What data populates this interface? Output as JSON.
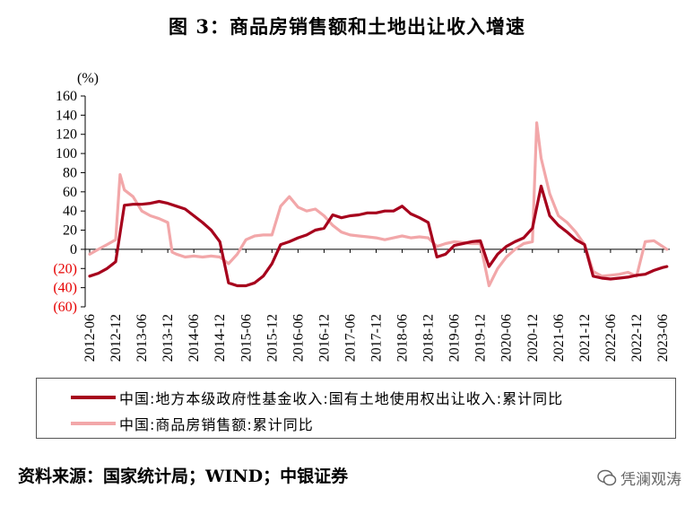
{
  "title": "图 3：商品房销售额和土地出让收入增速",
  "unit_label": "(%)",
  "legend": [
    {
      "label": "中国:地方本级政府性基金收入:国有土地使用权出让收入:累计同比",
      "color": "#a6001c"
    },
    {
      "label": "中国:商品房销售额:累计同比",
      "color": "#f2a7a9"
    }
  ],
  "source": "资料来源：国家统计局；WIND；中银证券",
  "watermark": "凭澜观涛",
  "chart_data": {
    "type": "line",
    "ylim": [
      -60,
      160
    ],
    "yticks": [
      160,
      140,
      120,
      100,
      80,
      60,
      40,
      20,
      0,
      -20,
      -40,
      -60
    ],
    "ytick_labels": [
      "160",
      "140",
      "120",
      "100",
      "80",
      "60",
      "40",
      "20",
      "0",
      "(20)",
      "(40)",
      "(60)"
    ],
    "xtick_labels": [
      "2012-06",
      "2012-12",
      "2013-06",
      "2013-12",
      "2014-06",
      "2014-12",
      "2015-06",
      "2015-12",
      "2016-06",
      "2016-12",
      "2017-06",
      "2017-12",
      "2018-06",
      "2018-12",
      "2019-06",
      "2019-12",
      "2020-06",
      "2020-12",
      "2021-06",
      "2021-12",
      "2022-06",
      "2022-12",
      "2023-06"
    ],
    "series": [
      {
        "name": "中国:地方本级政府性基金收入:国有土地使用权出让收入:累计同比",
        "color": "#a6001c",
        "x": [
          "2012-06",
          "2012-08",
          "2012-10",
          "2012-12",
          "2013-02",
          "2013-04",
          "2013-06",
          "2013-08",
          "2013-10",
          "2013-12",
          "2014-02",
          "2014-04",
          "2014-06",
          "2014-08",
          "2014-10",
          "2014-12",
          "2015-02",
          "2015-04",
          "2015-06",
          "2015-08",
          "2015-10",
          "2015-12",
          "2016-02",
          "2016-04",
          "2016-06",
          "2016-08",
          "2016-10",
          "2016-12",
          "2017-02",
          "2017-04",
          "2017-06",
          "2017-08",
          "2017-10",
          "2017-12",
          "2018-02",
          "2018-04",
          "2018-06",
          "2018-08",
          "2018-10",
          "2018-12",
          "2019-02",
          "2019-04",
          "2019-06",
          "2019-08",
          "2019-10",
          "2019-12",
          "2020-02",
          "2020-04",
          "2020-06",
          "2020-08",
          "2020-10",
          "2020-12",
          "2021-02",
          "2021-04",
          "2021-06",
          "2021-08",
          "2021-10",
          "2021-12",
          "2022-02",
          "2022-04",
          "2022-06",
          "2022-08",
          "2022-10",
          "2022-12",
          "2023-02",
          "2023-04",
          "2023-06",
          "2023-07"
        ],
        "y": [
          -28,
          -25,
          -20,
          -13,
          46,
          47,
          47,
          48,
          50,
          48,
          45,
          42,
          35,
          28,
          20,
          8,
          -35,
          -38,
          -38,
          -35,
          -28,
          -15,
          5,
          8,
          12,
          15,
          20,
          22,
          36,
          33,
          35,
          36,
          38,
          38,
          40,
          40,
          45,
          37,
          33,
          28,
          -8,
          -5,
          4,
          6,
          8,
          9,
          -18,
          -5,
          3,
          8,
          12,
          22,
          66,
          35,
          25,
          18,
          10,
          5,
          -28,
          -30,
          -31,
          -30,
          -29,
          -27,
          -26,
          -22,
          -19,
          -18
        ]
      },
      {
        "name": "中国:商品房销售额:累计同比",
        "color": "#f2a7a9",
        "x": [
          "2012-06",
          "2012-08",
          "2012-10",
          "2012-12",
          "2013-01",
          "2013-02",
          "2013-04",
          "2013-06",
          "2013-08",
          "2013-10",
          "2013-12",
          "2014-01",
          "2014-02",
          "2014-04",
          "2014-06",
          "2014-08",
          "2014-10",
          "2014-12",
          "2015-02",
          "2015-04",
          "2015-06",
          "2015-08",
          "2015-10",
          "2015-12",
          "2016-02",
          "2016-04",
          "2016-06",
          "2016-08",
          "2016-10",
          "2016-12",
          "2017-02",
          "2017-04",
          "2017-06",
          "2017-08",
          "2017-10",
          "2017-12",
          "2018-02",
          "2018-04",
          "2018-06",
          "2018-08",
          "2018-10",
          "2018-12",
          "2019-02",
          "2019-04",
          "2019-06",
          "2019-08",
          "2019-10",
          "2019-12",
          "2020-02",
          "2020-04",
          "2020-06",
          "2020-08",
          "2020-10",
          "2020-12",
          "2021-01",
          "2021-02",
          "2021-04",
          "2021-06",
          "2021-08",
          "2021-10",
          "2021-12",
          "2022-02",
          "2022-04",
          "2022-06",
          "2022-08",
          "2022-10",
          "2022-12",
          "2023-02",
          "2023-04",
          "2023-06",
          "2023-07"
        ],
        "y": [
          -5,
          0,
          5,
          10,
          78,
          62,
          55,
          40,
          35,
          32,
          28,
          -3,
          -5,
          -8,
          -7,
          -8,
          -7,
          -8,
          -15,
          -5,
          10,
          14,
          15,
          15,
          45,
          55,
          44,
          40,
          42,
          35,
          25,
          18,
          15,
          14,
          13,
          12,
          10,
          12,
          14,
          12,
          13,
          12,
          3,
          6,
          8,
          7,
          6,
          6,
          -38,
          -20,
          -8,
          0,
          6,
          8,
          132,
          95,
          58,
          35,
          28,
          18,
          5,
          -23,
          -28,
          -27,
          -26,
          -24,
          -28,
          8,
          9,
          3,
          0
        ]
      }
    ]
  }
}
